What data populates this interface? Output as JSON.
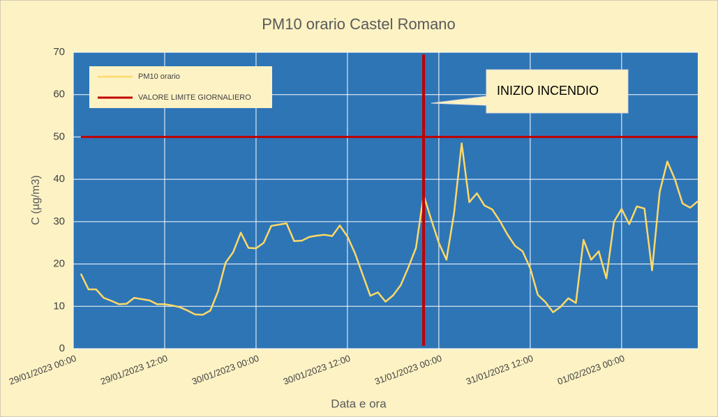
{
  "chart_data": {
    "type": "line",
    "title": "PM10 orario Castel Romano",
    "x_label": "Data e ora",
    "y_label": "C (µg/m3)",
    "x": [
      "29/01/2023 01:00",
      "29/01/2023 02:00",
      "29/01/2023 03:00",
      "29/01/2023 04:00",
      "29/01/2023 05:00",
      "29/01/2023 06:00",
      "29/01/2023 07:00",
      "29/01/2023 08:00",
      "29/01/2023 09:00",
      "29/01/2023 10:00",
      "29/01/2023 11:00",
      "29/01/2023 12:00",
      "29/01/2023 13:00",
      "29/01/2023 14:00",
      "29/01/2023 15:00",
      "29/01/2023 16:00",
      "29/01/2023 17:00",
      "29/01/2023 18:00",
      "29/01/2023 19:00",
      "29/01/2023 20:00",
      "29/01/2023 21:00",
      "29/01/2023 22:00",
      "29/01/2023 23:00",
      "30/01/2023 00:00",
      "30/01/2023 01:00",
      "30/01/2023 02:00",
      "30/01/2023 03:00",
      "30/01/2023 04:00",
      "30/01/2023 05:00",
      "30/01/2023 06:00",
      "30/01/2023 07:00",
      "30/01/2023 08:00",
      "30/01/2023 09:00",
      "30/01/2023 10:00",
      "30/01/2023 11:00",
      "30/01/2023 12:00",
      "30/01/2023 13:00",
      "30/01/2023 14:00",
      "30/01/2023 15:00",
      "30/01/2023 16:00",
      "30/01/2023 17:00",
      "30/01/2023 18:00",
      "30/01/2023 19:00",
      "30/01/2023 20:00",
      "30/01/2023 21:00",
      "30/01/2023 22:00",
      "30/01/2023 23:00",
      "31/01/2023 00:00",
      "31/01/2023 01:00",
      "31/01/2023 02:00",
      "31/01/2023 03:00",
      "31/01/2023 04:00",
      "31/01/2023 05:00",
      "31/01/2023 06:00",
      "31/01/2023 07:00",
      "31/01/2023 08:00",
      "31/01/2023 09:00",
      "31/01/2023 10:00",
      "31/01/2023 11:00",
      "31/01/2023 12:00",
      "31/01/2023 13:00",
      "31/01/2023 14:00",
      "31/01/2023 15:00",
      "31/01/2023 16:00",
      "31/01/2023 17:00",
      "31/01/2023 18:00",
      "31/01/2023 19:00",
      "31/01/2023 20:00",
      "31/01/2023 21:00",
      "31/01/2023 22:00",
      "31/01/2023 23:00",
      "01/02/2023 00:00",
      "01/02/2023 01:00",
      "01/02/2023 02:00",
      "01/02/2023 03:00",
      "01/02/2023 04:00",
      "01/02/2023 05:00",
      "01/02/2023 06:00",
      "01/02/2023 07:00",
      "01/02/2023 08:00",
      "01/02/2023 09:00",
      "01/02/2023 10:00"
    ],
    "series": [
      {
        "name": "PM10 orario",
        "color": "#ffd966",
        "values": [
          17.7,
          14,
          14,
          12,
          11.3,
          10.5,
          10.6,
          12,
          11.7,
          11.4,
          10.5,
          10.5,
          10.2,
          9.8,
          9,
          8.1,
          8,
          9,
          13.5,
          20.3,
          22.8,
          27.4,
          23.8,
          23.7,
          25,
          29,
          29.3,
          29.6,
          25.4,
          25.5,
          26.4,
          26.7,
          26.9,
          26.6,
          29.1,
          26.5,
          22.5,
          17.5,
          12.5,
          13.3,
          11.1,
          12.6,
          15,
          19.2,
          23.8,
          36.3,
          30.5,
          25,
          21,
          32,
          48.5,
          34.6,
          36.7,
          33.8,
          32.9,
          30.2,
          27,
          24.3,
          23,
          19,
          12.7,
          11,
          8.6,
          9.9,
          11.9,
          10.8,
          25.7,
          21,
          23,
          16.6,
          30,
          33,
          29.4,
          33.6,
          33.1,
          18.5,
          37,
          44.2,
          40,
          34.3,
          33.3,
          34.8
        ]
      },
      {
        "name": "VALORE LIMITE GIORNALIERO",
        "color": "#c00000",
        "values": [
          50,
          50,
          50,
          50,
          50,
          50,
          50,
          50,
          50,
          50,
          50,
          50,
          50,
          50,
          50,
          50,
          50,
          50,
          50,
          50,
          50,
          50,
          50,
          50,
          50,
          50,
          50,
          50,
          50,
          50,
          50,
          50,
          50,
          50,
          50,
          50,
          50,
          50,
          50,
          50,
          50,
          50,
          50,
          50,
          50,
          50,
          50,
          50,
          50,
          50,
          50,
          50,
          50,
          50,
          50,
          50,
          50,
          50,
          50,
          50,
          50,
          50,
          50,
          50,
          50,
          50,
          50,
          50,
          50,
          50,
          50,
          50,
          50,
          50,
          50,
          50,
          50,
          50,
          50,
          50,
          50,
          50
        ]
      }
    ],
    "annotations": [
      {
        "text": "INIZIO INCENDIO",
        "x": "30/01/2023 22:00",
        "color": "#c00000"
      }
    ],
    "xlim": [
      "29/01/2023 00:00",
      "01/02/2023 10:00"
    ],
    "xticks": [
      "29/01/2023 00:00",
      "29/01/2023 12:00",
      "30/01/2023 00:00",
      "30/01/2023 12:00",
      "31/01/2023 00:00",
      "31/01/2023 12:00",
      "01/02/2023 00:00"
    ],
    "ylim": [
      0,
      70
    ],
    "yticks": [
      0,
      10,
      20,
      30,
      40,
      50,
      60,
      70
    ],
    "grid": true,
    "legend": "upper left"
  }
}
